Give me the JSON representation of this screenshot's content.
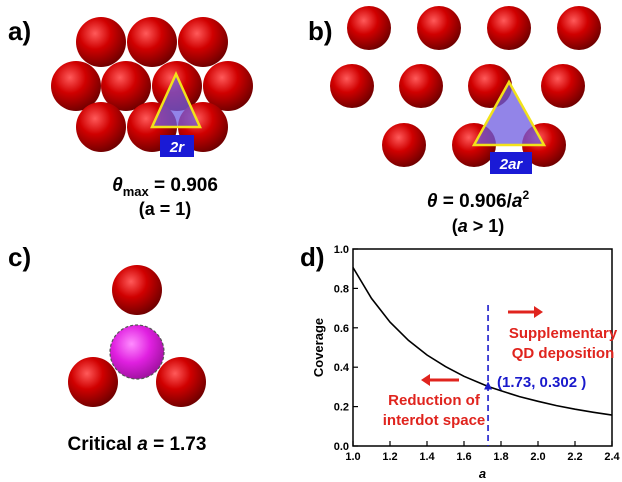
{
  "colors": {
    "sphere": "#c40000",
    "sphere_highlight": "#ff3a3a",
    "center_sphere": "#e020e0",
    "triangle_stroke": "#f2e21a",
    "badge": "#1a1ad6",
    "curve": "#000000",
    "red_annotation": "#e0241e",
    "blue_annotation": "#1a1acc"
  },
  "panels": {
    "a": {
      "label": "a)",
      "badge": "2r",
      "caption_symbol": "θ",
      "caption_subscript": "max",
      "caption_value": " = 0.906",
      "caption_line2": "(a = 1)"
    },
    "b": {
      "label": "b)",
      "badge": "2ar",
      "caption_symbol": "θ",
      "caption_value": " = 0.906/",
      "caption_var": "a",
      "caption_exp": "2",
      "caption_line2_open": "(",
      "caption_line2_var": "a",
      "caption_line2_rest": " > 1)"
    },
    "c": {
      "label": "c)",
      "caption_text": "Critical ",
      "caption_var": "a",
      "caption_value": " = 1.73"
    },
    "d": {
      "label": "d)",
      "annotation_right": [
        "Supplementary",
        "QD deposition"
      ],
      "annotation_left": [
        "Reduction of",
        "interdot space"
      ],
      "point_label": "(1.73, 0.302 )"
    }
  },
  "chart_data": {
    "type": "line",
    "xlabel": "a",
    "ylabel": "Coverage",
    "xlim": [
      1.0,
      2.4
    ],
    "ylim": [
      0.0,
      1.0
    ],
    "xticks": [
      "1.0",
      "1.2",
      "1.4",
      "1.6",
      "1.8",
      "2.0",
      "2.2",
      "2.4"
    ],
    "yticks": [
      "0.0",
      "0.2",
      "0.4",
      "0.6",
      "0.8",
      "1.0"
    ],
    "series": [
      {
        "formula": "0.906/a^2",
        "x": [
          1.0,
          1.1,
          1.2,
          1.3,
          1.4,
          1.5,
          1.6,
          1.73,
          1.8,
          1.9,
          2.0,
          2.1,
          2.2,
          2.3,
          2.4
        ],
        "values": [
          0.906,
          0.749,
          0.629,
          0.536,
          0.462,
          0.403,
          0.354,
          0.302,
          0.28,
          0.251,
          0.227,
          0.205,
          0.187,
          0.171,
          0.157
        ]
      }
    ],
    "marked_point": {
      "x": 1.73,
      "y": 0.302
    },
    "threshold_x": 1.73,
    "grid": false
  }
}
